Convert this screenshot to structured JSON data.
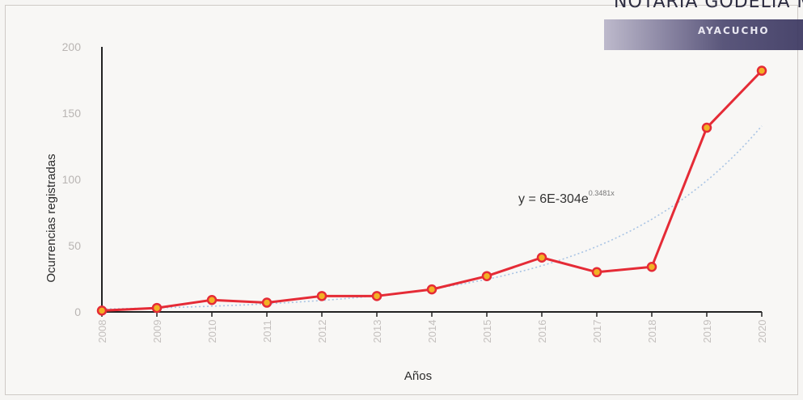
{
  "chart_data": {
    "type": "line",
    "title": "",
    "xlabel": "Años",
    "ylabel": "Ocurrencias registradas",
    "x": [
      2008,
      2009,
      2010,
      2011,
      2012,
      2013,
      2014,
      2015,
      2016,
      2017,
      2018,
      2019,
      2020
    ],
    "series": [
      {
        "values": [
          1,
          3,
          9,
          7,
          12,
          12,
          17,
          27,
          41,
          30,
          34,
          139,
          182
        ]
      }
    ],
    "trendline": {
      "type": "exponential",
      "label_main": "y = 6E-304e",
      "label_exp": "0.3481x"
    },
    "ylim": [
      0,
      200
    ],
    "yticks": [
      0,
      50,
      100,
      150,
      200
    ],
    "grid": false,
    "legend": "none",
    "colors": {
      "series": "#e52b36",
      "marker_fill": "#f2b124",
      "trend": "#a9c4e4",
      "axis": "#222222"
    }
  },
  "stamp": {
    "name": "NOTARIA GODELIA MA",
    "city": "AYACUCHO"
  }
}
